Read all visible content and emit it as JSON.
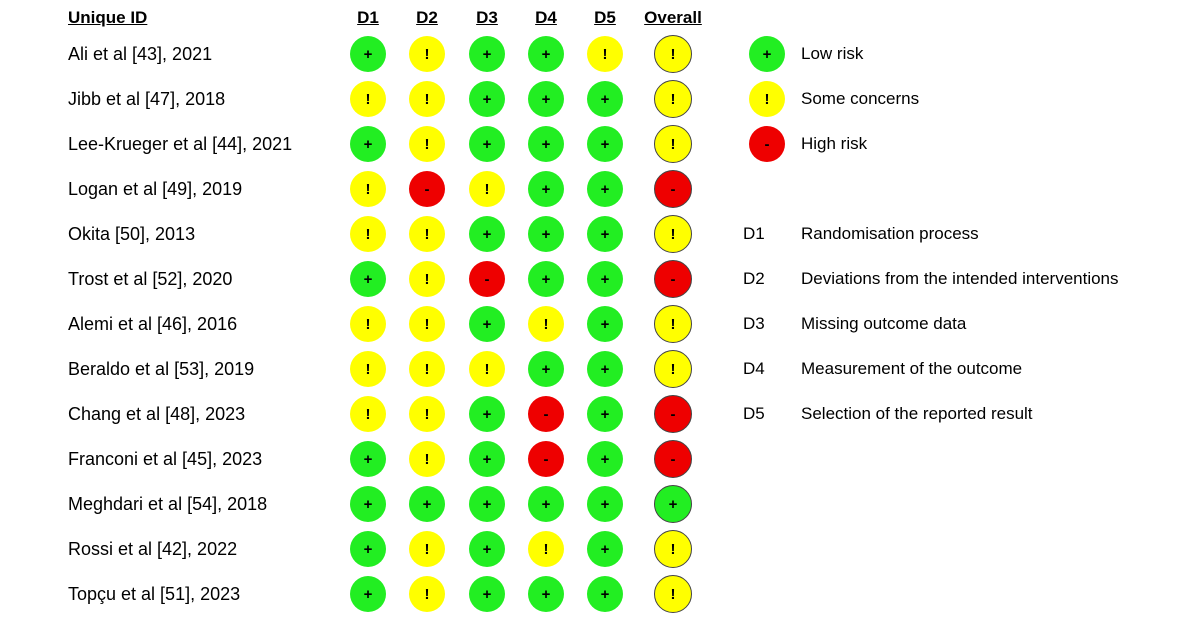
{
  "chart_data": {
    "type": "table",
    "header": {
      "id_label": "Unique ID",
      "domains": [
        "D1",
        "D2",
        "D3",
        "D4",
        "D5"
      ],
      "overall_label": "Overall"
    },
    "rows": [
      {
        "study": "Ali et al [43], 2021",
        "D1": "low",
        "D2": "some",
        "D3": "low",
        "D4": "low",
        "D5": "some",
        "overall": "some"
      },
      {
        "study": "Jibb et al [47], 2018",
        "D1": "some",
        "D2": "some",
        "D3": "low",
        "D4": "low",
        "D5": "low",
        "overall": "some"
      },
      {
        "study": "Lee-Krueger et al [44], 2021",
        "D1": "low",
        "D2": "some",
        "D3": "low",
        "D4": "low",
        "D5": "low",
        "overall": "some"
      },
      {
        "study": "Logan et al [49], 2019",
        "D1": "some",
        "D2": "high",
        "D3": "some",
        "D4": "low",
        "D5": "low",
        "overall": "high"
      },
      {
        "study": "Okita [50], 2013",
        "D1": "some",
        "D2": "some",
        "D3": "low",
        "D4": "low",
        "D5": "low",
        "overall": "some"
      },
      {
        "study": "Trost et al [52], 2020",
        "D1": "low",
        "D2": "some",
        "D3": "high",
        "D4": "low",
        "D5": "low",
        "overall": "high"
      },
      {
        "study": "Alemi et al [46], 2016",
        "D1": "some",
        "D2": "some",
        "D3": "low",
        "D4": "some",
        "D5": "low",
        "overall": "some"
      },
      {
        "study": "Beraldo et al [53], 2019",
        "D1": "some",
        "D2": "some",
        "D3": "some",
        "D4": "low",
        "D5": "low",
        "overall": "some"
      },
      {
        "study": "Chang et al [48], 2023",
        "D1": "some",
        "D2": "some",
        "D3": "low",
        "D4": "high",
        "D5": "low",
        "overall": "high"
      },
      {
        "study": "Franconi et al [45], 2023",
        "D1": "low",
        "D2": "some",
        "D3": "low",
        "D4": "high",
        "D5": "low",
        "overall": "high"
      },
      {
        "study": "Meghdari et al [54], 2018",
        "D1": "low",
        "D2": "low",
        "D3": "low",
        "D4": "low",
        "D5": "low",
        "overall": "low"
      },
      {
        "study": "Rossi et al [42], 2022",
        "D1": "low",
        "D2": "some",
        "D3": "low",
        "D4": "some",
        "D5": "low",
        "overall": "some"
      },
      {
        "study": "Topçu et al [51], 2023",
        "D1": "low",
        "D2": "some",
        "D3": "low",
        "D4": "low",
        "D5": "low",
        "overall": "some"
      }
    ],
    "risk_levels": {
      "low": {
        "label": "Low risk",
        "symbol": "+",
        "color": "#22ee22"
      },
      "some": {
        "label": "Some concerns",
        "symbol": "!",
        "color": "#ffff00"
      },
      "high": {
        "label": "High risk",
        "symbol": "-",
        "color": "#ee0000"
      }
    },
    "legend_order": [
      "low",
      "some",
      "high"
    ],
    "domain_definitions": [
      {
        "code": "D1",
        "label": "Randomisation process"
      },
      {
        "code": "D2",
        "label": "Deviations from the intended interventions"
      },
      {
        "code": "D3",
        "label": "Missing outcome data"
      },
      {
        "code": "D4",
        "label": "Measurement of the outcome"
      },
      {
        "code": "D5",
        "label": "Selection of the reported result"
      }
    ]
  }
}
